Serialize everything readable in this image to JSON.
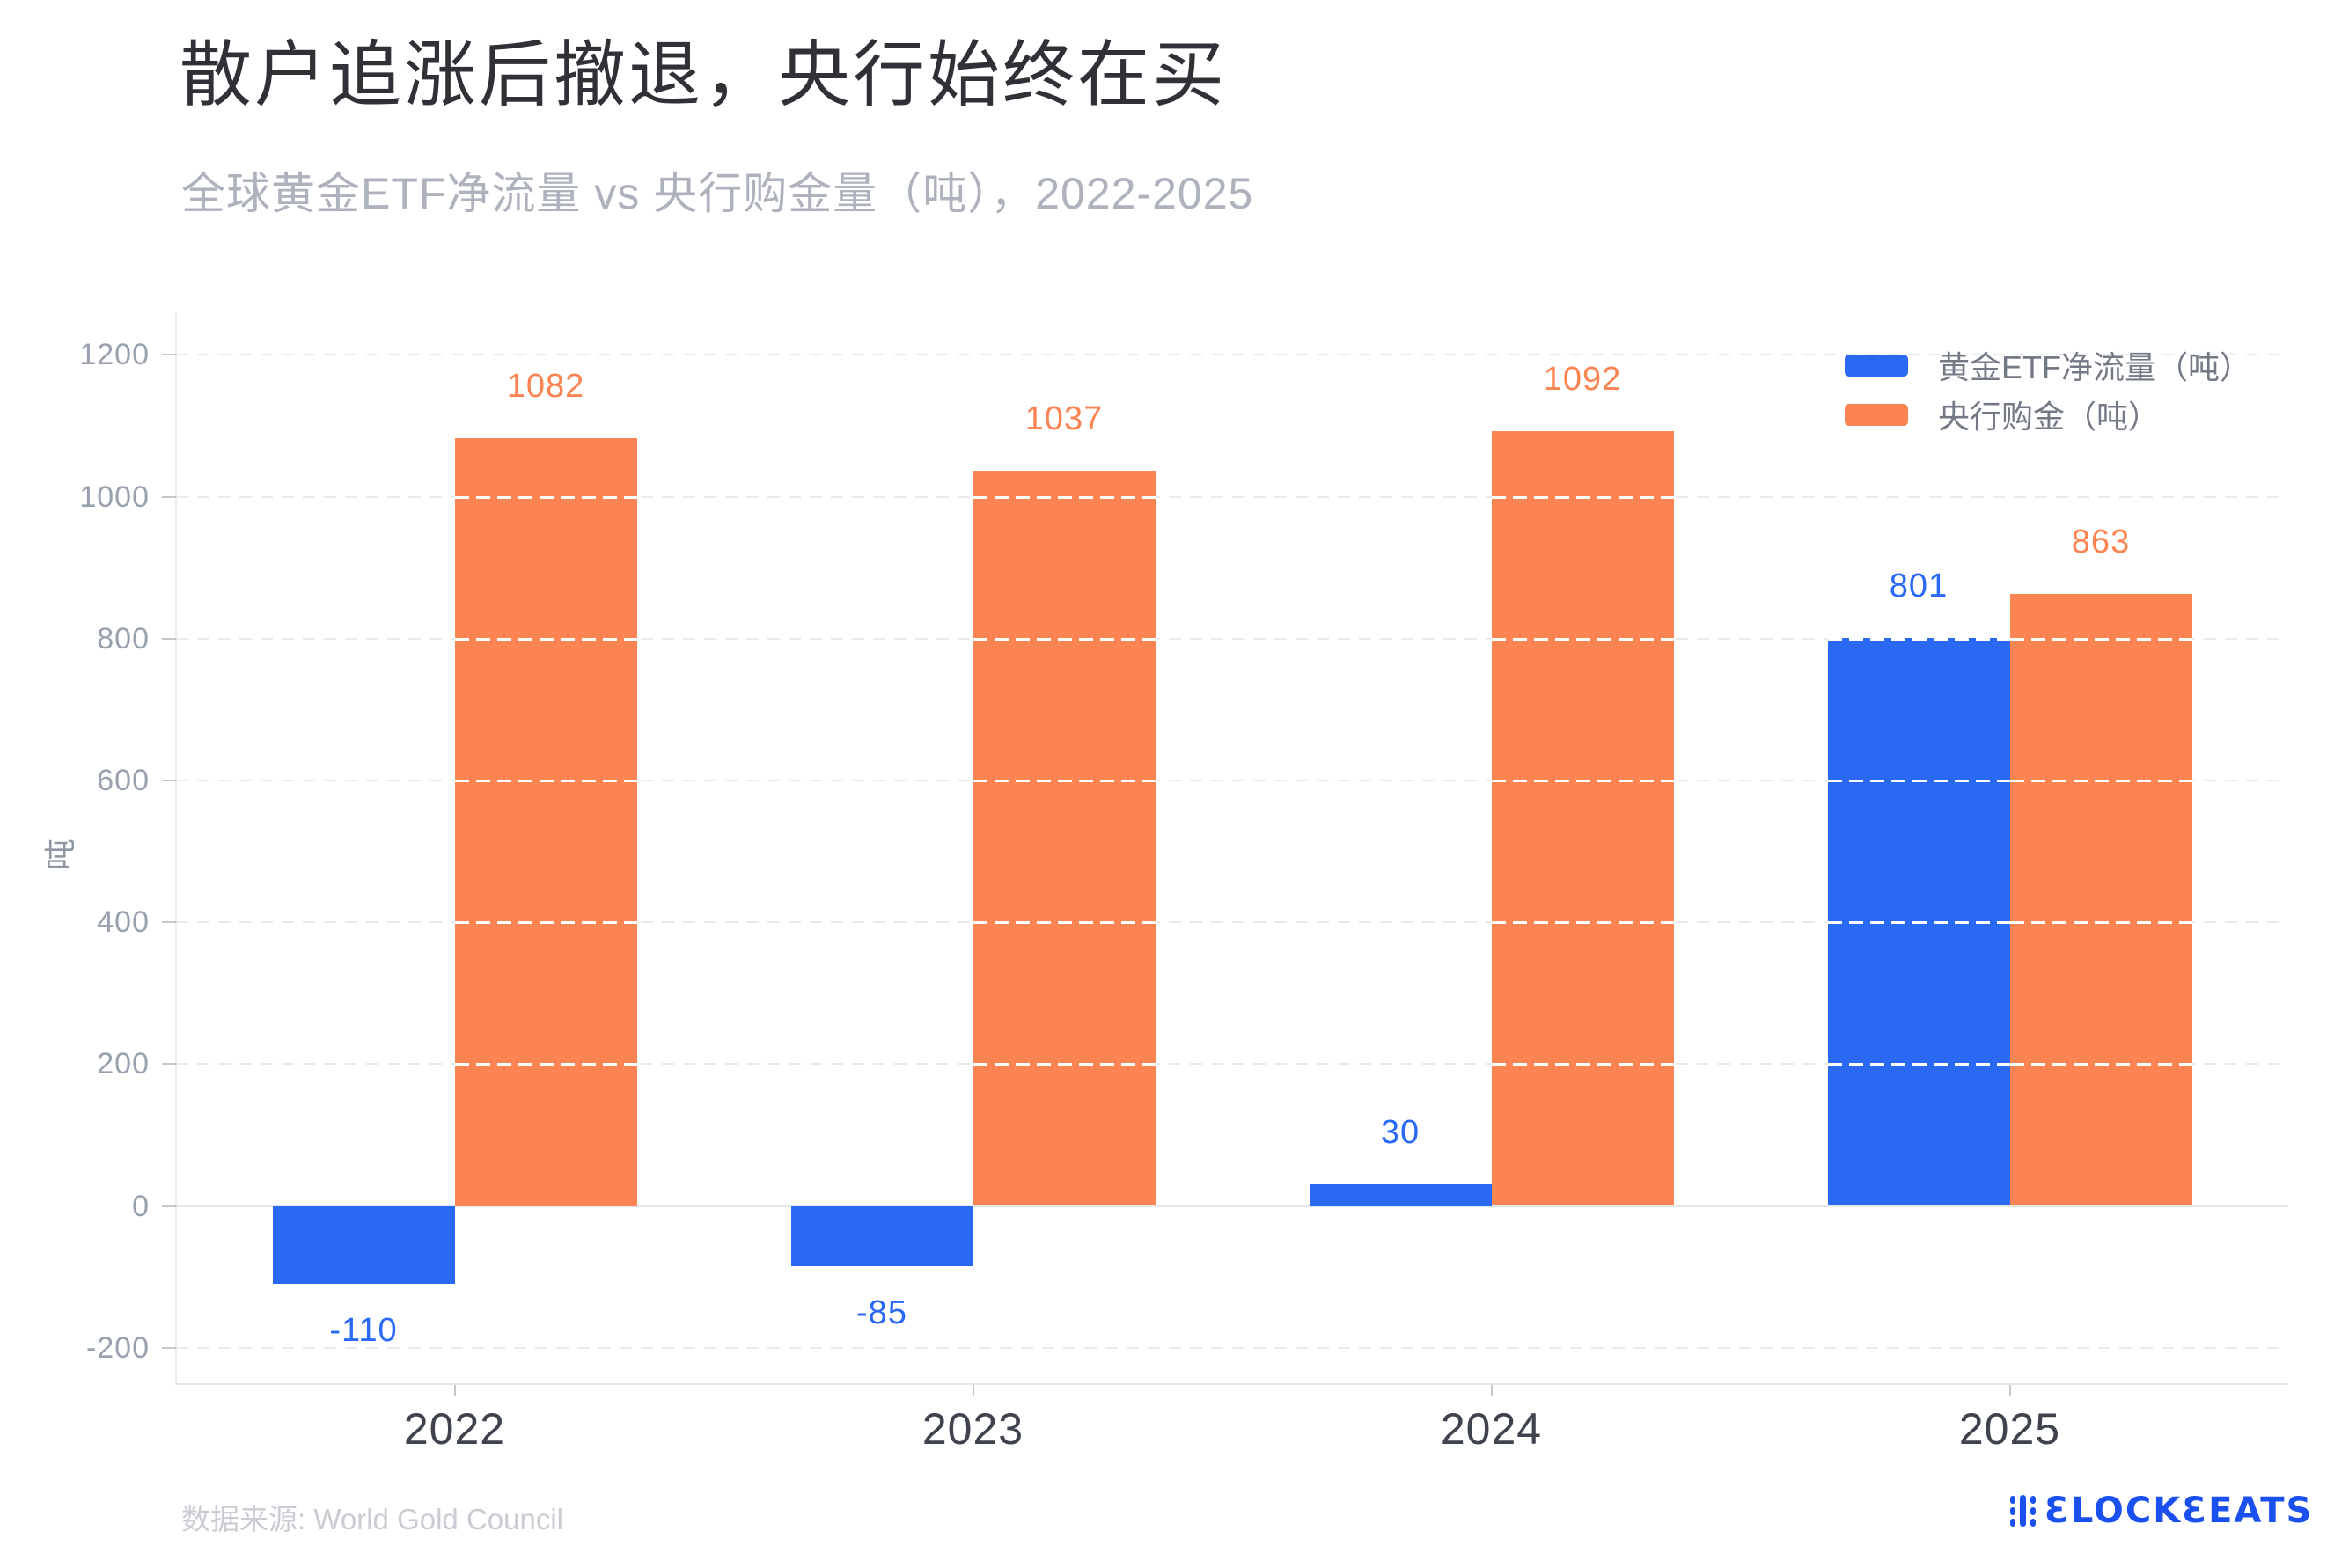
{
  "header": {
    "title": "散户追涨后撤退，央行始终在买",
    "subtitle": "全球黄金ETF净流量 vs 央行购金量（吨），2022-2025"
  },
  "chart_data": {
    "type": "bar",
    "title": "散户追涨后撤退，央行始终在买",
    "subtitle": "全球黄金ETF净流量 vs 央行购金量（吨），2022-2025",
    "categories": [
      "2022",
      "2023",
      "2024",
      "2025"
    ],
    "series": [
      {
        "name": "黄金ETF净流量（吨）",
        "color": "#2a69f6",
        "values": [
          -110,
          -85,
          30,
          801
        ]
      },
      {
        "name": "央行购金（吨）",
        "color": "#fc8452",
        "values": [
          1082,
          1037,
          1092,
          863
        ]
      }
    ],
    "xlabel": "",
    "ylabel": "吨",
    "yticks": [
      -200,
      0,
      200,
      400,
      600,
      800,
      1000,
      1200
    ],
    "ylim": [
      -250,
      1260
    ],
    "grid": true,
    "gridline_style": "dashed",
    "legend_position": "top-right",
    "label_colors_follow_series": true
  },
  "legend": {
    "items": [
      {
        "label": "黄金ETF净流量（吨）",
        "color": "#2a69f6"
      },
      {
        "label": "央行购金（吨）",
        "color": "#fc8452"
      }
    ]
  },
  "footer": {
    "source": "数据来源: World Gold Council",
    "logo_text": "BLOCKBEATS"
  },
  "colors": {
    "series_blue": "#2a69f6",
    "series_orange": "#fc8452",
    "logo_blue": "#1a4ff0",
    "grid": "#e8eaee",
    "axis": "#e4e6ea"
  }
}
